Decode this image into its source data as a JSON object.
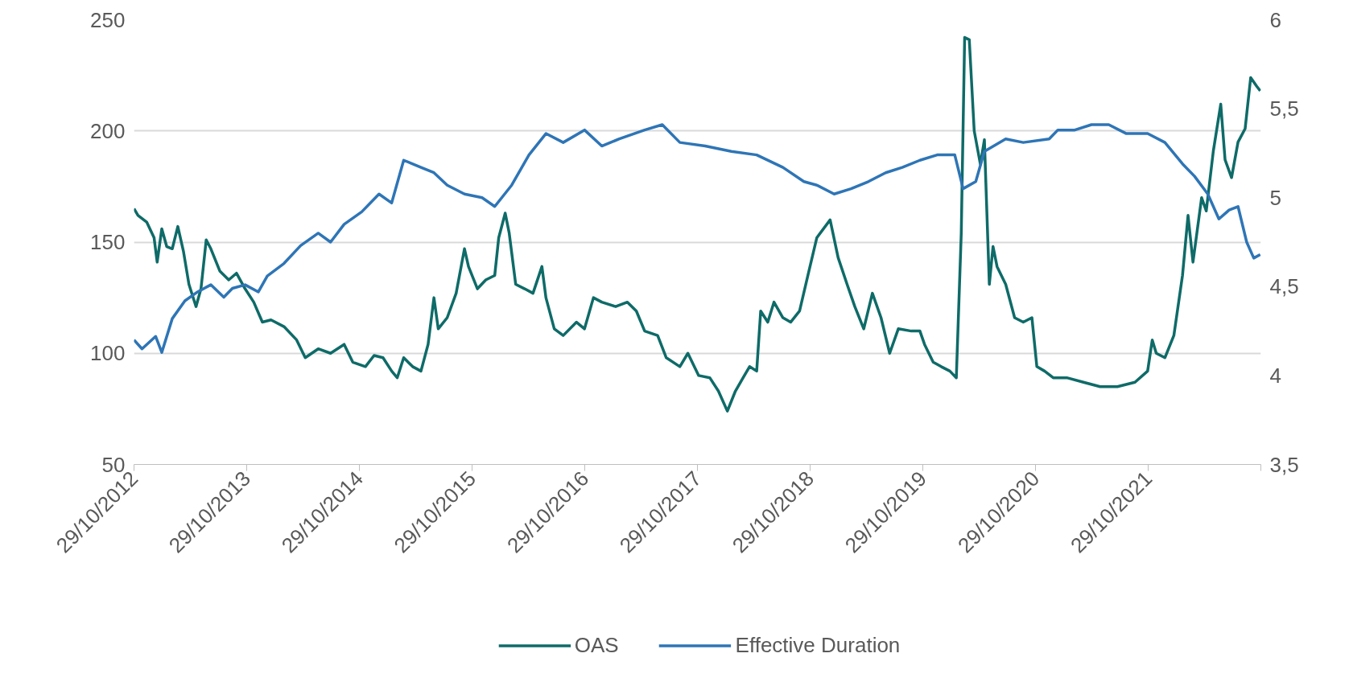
{
  "chart_data": {
    "type": "line",
    "xlim": [
      "2012-10-29",
      "2022-10-29"
    ],
    "xticks": [
      {
        "value": "2012-10-29",
        "label": "29/10/2012"
      },
      {
        "value": "2013-10-29",
        "label": "29/10/2013"
      },
      {
        "value": "2014-10-29",
        "label": "29/10/2014"
      },
      {
        "value": "2015-10-29",
        "label": "29/10/2015"
      },
      {
        "value": "2016-10-29",
        "label": "29/10/2016"
      },
      {
        "value": "2017-10-29",
        "label": "29/10/2017"
      },
      {
        "value": "2018-10-29",
        "label": "29/10/2018"
      },
      {
        "value": "2019-10-29",
        "label": "29/10/2019"
      },
      {
        "value": "2020-10-29",
        "label": "29/10/2020"
      },
      {
        "value": "2021-10-29",
        "label": "29/10/2021"
      },
      {
        "value": "2022-10-29",
        "label": null
      }
    ],
    "ylim": [
      50,
      250
    ],
    "yticks": [
      50,
      100,
      150,
      200,
      250
    ],
    "y2lim": [
      3.5,
      6
    ],
    "y2ticks": [
      {
        "value": 3.5,
        "label": "3,5"
      },
      4,
      {
        "value": 4.5,
        "label": "4,5"
      },
      5,
      {
        "value": 5.5,
        "label": "5,5"
      },
      6
    ],
    "grid": "y",
    "legend": "bottom",
    "series": [
      {
        "name": "OAS",
        "color": "#0e6b68",
        "x": [
          "2012-10-29",
          "2012-11-11",
          "2012-12-09",
          "2013-01-02",
          "2013-01-12",
          "2013-01-27",
          "2013-02-12",
          "2013-03-02",
          "2013-03-20",
          "2013-04-07",
          "2013-04-25",
          "2013-05-18",
          "2013-06-03",
          "2013-06-20",
          "2013-07-05",
          "2013-08-03",
          "2013-09-01",
          "2013-09-26",
          "2013-10-24",
          "2013-11-21",
          "2013-12-19",
          "2014-01-16",
          "2014-02-27",
          "2014-04-09",
          "2014-05-07",
          "2014-06-18",
          "2014-07-28",
          "2014-09-10",
          "2014-10-08",
          "2014-11-18",
          "2014-12-16",
          "2015-01-14",
          "2015-02-11",
          "2015-03-01",
          "2015-03-22",
          "2015-04-20",
          "2015-05-17",
          "2015-06-09",
          "2015-06-28",
          "2015-07-12",
          "2015-08-10",
          "2015-09-08",
          "2015-10-05",
          "2015-10-18",
          "2015-11-16",
          "2015-12-13",
          "2016-01-11",
          "2016-01-24",
          "2016-02-14",
          "2016-02-27",
          "2016-03-19",
          "2016-04-17",
          "2016-05-14",
          "2016-06-12",
          "2016-06-25",
          "2016-07-22",
          "2016-08-20",
          "2016-10-02",
          "2016-10-28",
          "2016-11-26",
          "2016-12-23",
          "2017-02-06",
          "2017-03-16",
          "2017-04-14",
          "2017-05-11",
          "2017-06-22",
          "2017-07-20",
          "2017-09-02",
          "2017-09-28",
          "2017-11-02",
          "2017-12-08",
          "2018-01-05",
          "2018-02-03",
          "2018-03-01",
          "2018-03-26",
          "2018-04-16",
          "2018-05-09",
          "2018-05-22",
          "2018-06-14",
          "2018-07-04",
          "2018-08-02",
          "2018-08-27",
          "2018-09-25",
          "2018-10-22",
          "2018-11-20",
          "2019-01-02",
          "2019-01-28",
          "2019-02-26",
          "2019-03-23",
          "2019-04-21",
          "2019-05-19",
          "2019-06-16",
          "2019-07-14",
          "2019-08-11",
          "2019-09-22",
          "2019-10-20",
          "2019-11-04",
          "2019-12-02",
          "2019-12-28",
          "2020-01-25",
          "2020-02-15",
          "2020-03-02",
          "2020-03-13",
          "2020-03-28",
          "2020-04-13",
          "2020-05-03",
          "2020-05-16",
          "2020-06-01",
          "2020-06-13",
          "2020-06-26",
          "2020-07-24",
          "2020-08-22",
          "2020-09-19",
          "2020-10-17",
          "2020-11-02",
          "2020-11-27",
          "2020-12-25",
          "2021-02-07",
          "2021-04-02",
          "2021-05-26",
          "2021-07-21",
          "2021-09-16",
          "2021-10-27",
          "2021-11-11",
          "2021-11-24",
          "2021-12-22",
          "2022-01-20",
          "2022-02-17",
          "2022-03-07",
          "2022-03-23",
          "2022-04-20",
          "2022-05-05",
          "2022-05-28",
          "2022-06-21",
          "2022-07-05",
          "2022-07-26",
          "2022-08-16",
          "2022-09-08",
          "2022-09-26",
          "2022-10-16",
          "2022-10-27"
        ],
        "values": [
          165,
          162,
          159,
          152,
          141,
          156,
          148,
          147,
          157,
          146,
          131,
          121,
          129,
          151,
          147,
          137,
          133,
          136,
          129,
          123,
          114,
          115,
          112,
          106,
          98,
          102,
          100,
          104,
          96,
          94,
          99,
          98,
          92,
          89,
          98,
          94,
          92,
          104,
          125,
          111,
          116,
          127,
          147,
          139,
          129,
          133,
          135,
          152,
          163,
          154,
          131,
          129,
          127,
          139,
          125,
          111,
          108,
          114,
          111,
          125,
          123,
          121,
          123,
          119,
          110,
          108,
          98,
          94,
          100,
          90,
          89,
          83,
          74,
          83,
          89,
          94,
          92,
          119,
          114,
          123,
          116,
          114,
          119,
          135,
          152,
          160,
          143,
          131,
          121,
          111,
          127,
          116,
          100,
          111,
          110,
          110,
          104,
          96,
          94,
          92,
          89,
          154,
          242,
          241,
          200,
          185,
          196,
          131,
          148,
          139,
          131,
          116,
          114,
          116,
          94,
          92,
          89,
          89,
          87,
          85,
          85,
          87,
          92,
          106,
          100,
          98,
          108,
          135,
          162,
          141,
          170,
          164,
          191,
          212,
          187,
          179,
          195,
          201,
          224,
          220,
          218
        ]
      },
      {
        "name": "Effective Duration",
        "color": "#2e75b6",
        "axis": "y2",
        "x": [
          "2012-10-29",
          "2012-11-24",
          "2013-01-07",
          "2013-01-27",
          "2013-03-02",
          "2013-04-12",
          "2013-05-23",
          "2013-07-05",
          "2013-08-16",
          "2013-09-13",
          "2013-10-24",
          "2013-12-06",
          "2014-01-04",
          "2014-02-27",
          "2014-04-22",
          "2014-06-18",
          "2014-07-28",
          "2014-09-10",
          "2014-11-06",
          "2015-01-01",
          "2015-02-11",
          "2015-03-22",
          "2015-05-17",
          "2015-06-28",
          "2015-08-10",
          "2015-10-05",
          "2015-12-01",
          "2016-01-11",
          "2016-03-06",
          "2016-05-01",
          "2016-06-25",
          "2016-08-20",
          "2016-10-28",
          "2016-12-23",
          "2017-02-18",
          "2017-05-11",
          "2017-07-07",
          "2017-09-02",
          "2017-11-23",
          "2018-02-16",
          "2018-05-09",
          "2018-08-02",
          "2018-10-09",
          "2018-11-20",
          "2019-01-15",
          "2019-03-11",
          "2019-05-06",
          "2019-07-01",
          "2019-08-24",
          "2019-10-20",
          "2019-12-15",
          "2020-02-10",
          "2020-03-08",
          "2020-04-18",
          "2020-05-16",
          "2020-07-24",
          "2020-09-19",
          "2020-12-12",
          "2021-01-09",
          "2021-03-05",
          "2021-04-28",
          "2021-06-23",
          "2021-08-19",
          "2021-10-27",
          "2021-12-22",
          "2022-02-17",
          "2022-03-28",
          "2022-05-10",
          "2022-06-15",
          "2022-07-18",
          "2022-08-16",
          "2022-09-13",
          "2022-10-06",
          "2022-10-27"
        ],
        "values": [
          4.2,
          4.15,
          4.22,
          4.13,
          4.32,
          4.42,
          4.47,
          4.51,
          4.44,
          4.49,
          4.51,
          4.47,
          4.56,
          4.63,
          4.73,
          4.8,
          4.75,
          4.85,
          4.92,
          5.02,
          4.97,
          5.21,
          5.17,
          5.14,
          5.07,
          5.02,
          5.0,
          4.95,
          5.07,
          5.24,
          5.36,
          5.31,
          5.38,
          5.29,
          5.33,
          5.38,
          5.41,
          5.31,
          5.29,
          5.26,
          5.24,
          5.17,
          5.09,
          5.07,
          5.02,
          5.05,
          5.09,
          5.14,
          5.17,
          5.21,
          5.24,
          5.24,
          5.05,
          5.09,
          5.26,
          5.33,
          5.31,
          5.33,
          5.38,
          5.38,
          5.41,
          5.41,
          5.36,
          5.36,
          5.31,
          5.19,
          5.12,
          5.02,
          4.88,
          4.93,
          4.95,
          4.75,
          4.66,
          4.68
        ]
      }
    ]
  }
}
